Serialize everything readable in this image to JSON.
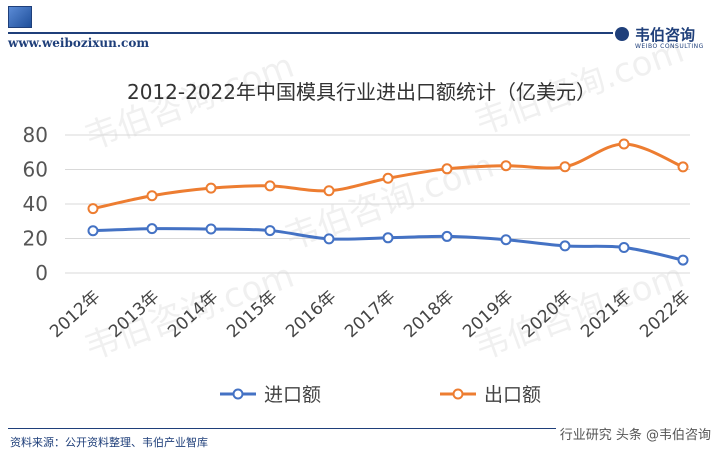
{
  "header": {
    "url": "www.weibozixun.com",
    "brand_name": "韦伯咨询",
    "brand_sub": "WEIBO CONSULTING"
  },
  "footer": {
    "source": "资料来源：公开资料整理、韦伯产业智库",
    "right_text": "行业研究 头条 @韦伯咨询"
  },
  "watermark": "韦伯咨询.com",
  "colors": {
    "import": "#4472c4",
    "export": "#ed7d31",
    "accent": "#1f3f7a"
  },
  "chart_data": {
    "type": "line",
    "title": "2012-2022年中国模具行业进出口额统计（亿美元）",
    "categories": [
      "2012年",
      "2013年",
      "2014年",
      "2015年",
      "2016年",
      "2017年",
      "2018年",
      "2019年",
      "2020年",
      "2021年",
      "2022年"
    ],
    "series": [
      {
        "name": "进口额",
        "values": [
          24.5,
          25.7,
          25.5,
          24.6,
          19.8,
          20.4,
          21.2,
          19.3,
          15.7,
          14.8,
          7.5
        ]
      },
      {
        "name": "出口额",
        "values": [
          37.3,
          44.8,
          49.2,
          50.5,
          47.7,
          54.9,
          60.4,
          62.2,
          61.6,
          74.8,
          61.5
        ]
      }
    ],
    "yticks": [
      0,
      20,
      40,
      60,
      80
    ],
    "ylim": [
      0,
      80
    ],
    "legend_position": "bottom",
    "grid": true
  }
}
